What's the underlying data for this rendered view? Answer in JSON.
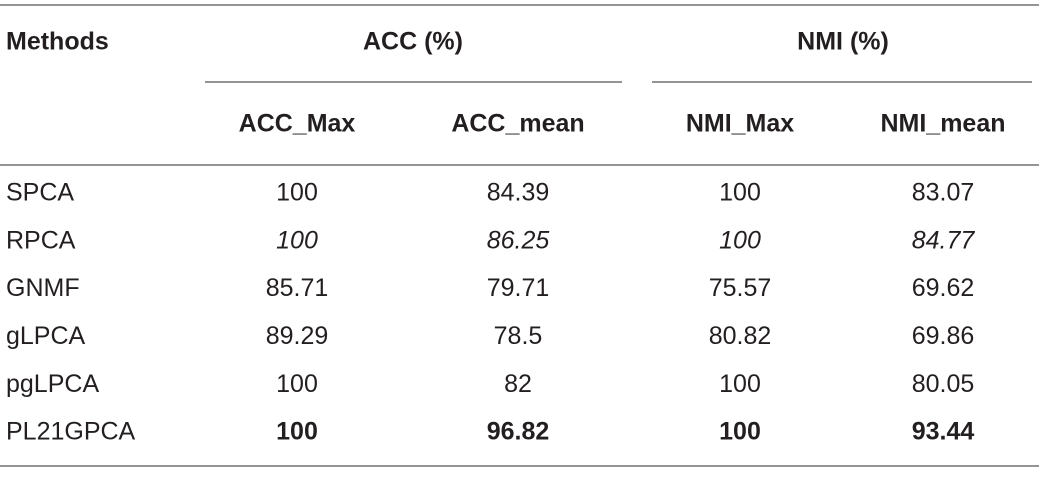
{
  "table": {
    "header": {
      "methods": "Methods",
      "groups": [
        "ACC (%)",
        "NMI (%)"
      ],
      "columns": [
        "ACC_Max",
        "ACC_mean",
        "NMI_Max",
        "NMI_mean"
      ]
    },
    "rows": [
      [
        "SPCA",
        "100",
        "84.39",
        "100",
        "83.07"
      ],
      [
        "RPCA",
        "100",
        "86.25",
        "100",
        "84.77"
      ],
      [
        "GNMF",
        "85.71",
        "79.71",
        "75.57",
        "69.62"
      ],
      [
        "gLPCA",
        "89.29",
        "78.5",
        "80.82",
        "69.86"
      ],
      [
        "pgLPCA",
        "100",
        "82",
        "100",
        "80.05"
      ],
      [
        "PL21GPCA",
        "100",
        "96.82",
        "100",
        "93.44"
      ]
    ]
  }
}
